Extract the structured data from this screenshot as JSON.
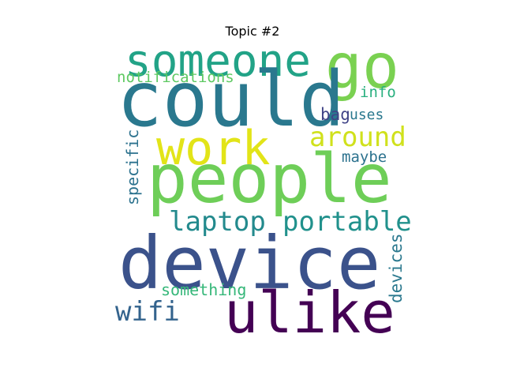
{
  "title": "Topic #2",
  "words": [
    {
      "text": "someone",
      "color": "#22a387"
    },
    {
      "text": "go",
      "color": "#7ad151"
    },
    {
      "text": "could",
      "color": "#2a788e"
    },
    {
      "text": "notifications",
      "color": "#5ec962"
    },
    {
      "text": "info",
      "color": "#29af7f"
    },
    {
      "text": "work",
      "color": "#e2e418"
    },
    {
      "text": "bag",
      "color": "#414487"
    },
    {
      "text": "uses",
      "color": "#2a788e"
    },
    {
      "text": "around",
      "color": "#d0e11c"
    },
    {
      "text": "maybe",
      "color": "#2c728e"
    },
    {
      "text": "people",
      "color": "#6ece58"
    },
    {
      "text": "specific",
      "color": "#2c728e"
    },
    {
      "text": "laptop",
      "color": "#238a8d"
    },
    {
      "text": "portable",
      "color": "#21918c"
    },
    {
      "text": "device",
      "color": "#3b528b"
    },
    {
      "text": "devices",
      "color": "#2a788e"
    },
    {
      "text": "something",
      "color": "#35b779"
    },
    {
      "text": "wifi",
      "color": "#33638d"
    },
    {
      "text": "ulike",
      "color": "#440154"
    }
  ]
}
